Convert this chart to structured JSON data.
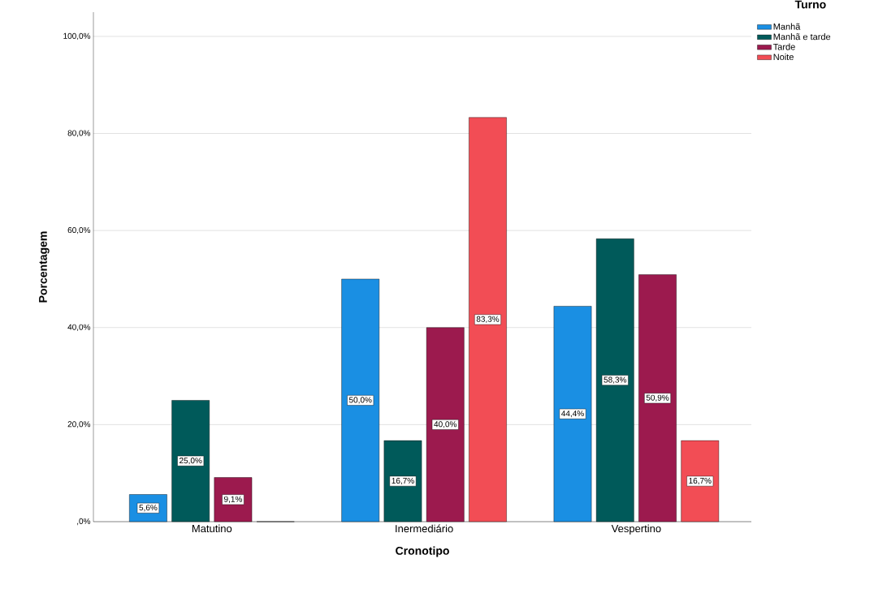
{
  "chart_data": {
    "type": "bar",
    "xlabel": "Cronotipo",
    "ylabel": "Porcentagem",
    "legend_title": "Turno",
    "categories": [
      "Matutino",
      "Inermediário",
      "Vespertino"
    ],
    "series": [
      {
        "name": "Manhã",
        "color": "#1a8fe3",
        "values": [
          5.6,
          50.0,
          44.4
        ],
        "value_labels": [
          "5,6%",
          "50,0%",
          "44,4%"
        ]
      },
      {
        "name": "Manhã e tarde",
        "color": "#005a5a",
        "values": [
          25.0,
          16.7,
          58.3
        ],
        "value_labels": [
          "25,0%",
          "16,7%",
          "58,3%"
        ]
      },
      {
        "name": "Tarde",
        "color": "#9c1a4e",
        "values": [
          9.1,
          40.0,
          50.9
        ],
        "value_labels": [
          "9,1%",
          "40,0%",
          "50,9%"
        ]
      },
      {
        "name": "Noite",
        "color": "#f24d55",
        "values": [
          0,
          83.3,
          16.7
        ],
        "value_labels": [
          null,
          "83,3%",
          "16,7%"
        ]
      }
    ],
    "ylim": [
      0,
      105
    ],
    "yticks": [
      {
        "value": 0,
        "label": ",0%"
      },
      {
        "value": 20,
        "label": "20,0%"
      },
      {
        "value": 40,
        "label": "40,0%"
      },
      {
        "value": 60,
        "label": "60,0%"
      },
      {
        "value": 80,
        "label": "80,0%"
      },
      {
        "value": 100,
        "label": "100,0%"
      }
    ],
    "grid": "y",
    "legend": "top right"
  }
}
